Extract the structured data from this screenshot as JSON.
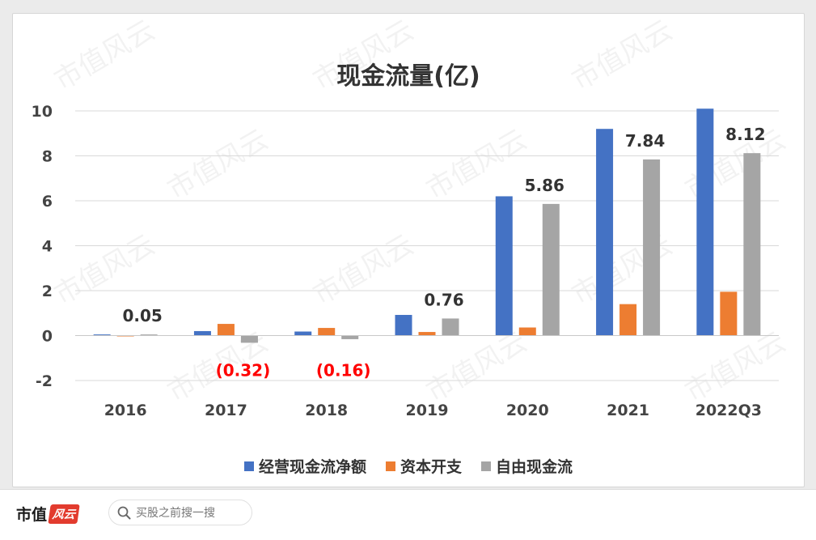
{
  "chart_data": {
    "type": "bar",
    "title": "现金流量(亿)",
    "categories": [
      "2016",
      "2017",
      "2018",
      "2019",
      "2020",
      "2021",
      "2022Q3"
    ],
    "series": [
      {
        "name": "经营现金流净额",
        "color": "#4472c4",
        "values": [
          0.05,
          0.2,
          0.18,
          0.92,
          6.2,
          9.2,
          10.1
        ]
      },
      {
        "name": "资本开支",
        "color": "#ed7d31",
        "values": [
          0.0,
          0.52,
          0.34,
          0.16,
          0.36,
          1.4,
          1.95
        ]
      },
      {
        "name": "自由现金流",
        "color": "#a5a5a5",
        "values": [
          0.05,
          -0.32,
          -0.16,
          0.76,
          5.86,
          7.84,
          8.12
        ]
      }
    ],
    "data_labels": [
      {
        "category": "2016",
        "series": "自由现金流",
        "text": "0.05",
        "color": "#333333"
      },
      {
        "category": "2017",
        "series": "自由现金流",
        "text": "(0.32)",
        "color": "#ff0000"
      },
      {
        "category": "2018",
        "series": "自由现金流",
        "text": "(0.16)",
        "color": "#ff0000"
      },
      {
        "category": "2019",
        "series": "自由现金流",
        "text": "0.76",
        "color": "#333333"
      },
      {
        "category": "2020",
        "series": "自由现金流",
        "text": "5.86",
        "color": "#333333"
      },
      {
        "category": "2021",
        "series": "自由现金流",
        "text": "7.84",
        "color": "#333333"
      },
      {
        "category": "2022Q3",
        "series": "自由现金流",
        "text": "8.12",
        "color": "#333333"
      }
    ],
    "ylim": [
      -2,
      10
    ],
    "yticks": [
      -2,
      0,
      2,
      4,
      6,
      8,
      10
    ],
    "xlabel": "",
    "ylabel": "",
    "grid": true,
    "legend_position": "bottom"
  },
  "watermark_text": "市值风云",
  "footer": {
    "logo_text": "市值",
    "logo_badge": "风云",
    "search_placeholder": "买股之前搜一搜"
  }
}
